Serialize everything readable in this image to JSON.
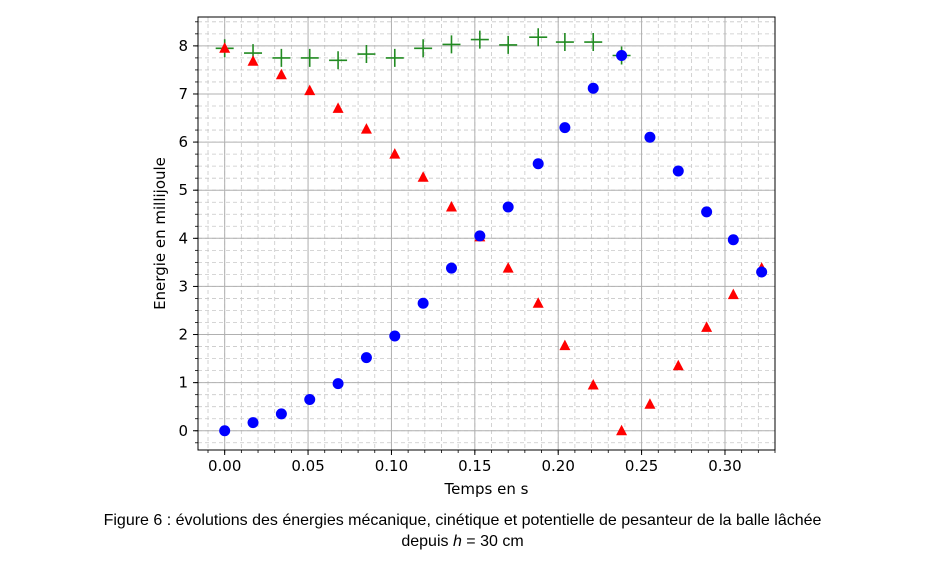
{
  "chart_data": {
    "type": "scatter",
    "title": "",
    "xlabel": "Temps en s",
    "ylabel": "Energie en millijoule",
    "xlim": [
      -0.016,
      0.33
    ],
    "ylim": [
      -0.4,
      8.6
    ],
    "x_ticks": [
      "0.00",
      "0.05",
      "0.10",
      "0.15",
      "0.20",
      "0.25",
      "0.30"
    ],
    "y_ticks": [
      "0",
      "1",
      "2",
      "3",
      "4",
      "5",
      "6",
      "7",
      "8"
    ],
    "grid": "major and minor, dashed",
    "series": [
      {
        "marker": "plus",
        "color": "#228b22",
        "points": [
          [
            0.0,
            7.95
          ],
          [
            0.017,
            7.85
          ],
          [
            0.034,
            7.75
          ],
          [
            0.051,
            7.75
          ],
          [
            0.068,
            7.7
          ],
          [
            0.085,
            7.83
          ],
          [
            0.102,
            7.75
          ],
          [
            0.119,
            7.95
          ],
          [
            0.136,
            8.03
          ],
          [
            0.153,
            8.13
          ],
          [
            0.17,
            8.02
          ],
          [
            0.188,
            8.18
          ],
          [
            0.204,
            8.08
          ],
          [
            0.221,
            8.08
          ],
          [
            0.238,
            7.8
          ]
        ]
      },
      {
        "marker": "triangle",
        "color": "#ff0000",
        "points": [
          [
            0.0,
            7.95
          ],
          [
            0.017,
            7.68
          ],
          [
            0.034,
            7.4
          ],
          [
            0.051,
            7.07
          ],
          [
            0.068,
            6.7
          ],
          [
            0.085,
            6.27
          ],
          [
            0.102,
            5.75
          ],
          [
            0.119,
            5.27
          ],
          [
            0.136,
            4.65
          ],
          [
            0.153,
            4.03
          ],
          [
            0.17,
            3.38
          ],
          [
            0.188,
            2.65
          ],
          [
            0.204,
            1.77
          ],
          [
            0.221,
            0.95
          ],
          [
            0.238,
            0.0
          ],
          [
            0.255,
            0.55
          ],
          [
            0.272,
            1.35
          ],
          [
            0.289,
            2.15
          ],
          [
            0.305,
            2.83
          ],
          [
            0.322,
            3.38
          ]
        ]
      },
      {
        "marker": "circle",
        "color": "#0000ff",
        "points": [
          [
            0.0,
            0.0
          ],
          [
            0.017,
            0.17
          ],
          [
            0.034,
            0.35
          ],
          [
            0.051,
            0.65
          ],
          [
            0.068,
            0.98
          ],
          [
            0.085,
            1.52
          ],
          [
            0.102,
            1.97
          ],
          [
            0.119,
            2.65
          ],
          [
            0.136,
            3.38
          ],
          [
            0.153,
            4.05
          ],
          [
            0.17,
            4.65
          ],
          [
            0.188,
            5.55
          ],
          [
            0.204,
            6.3
          ],
          [
            0.221,
            7.12
          ],
          [
            0.238,
            7.8
          ],
          [
            0.255,
            6.1
          ],
          [
            0.272,
            5.4
          ],
          [
            0.289,
            4.55
          ],
          [
            0.305,
            3.97
          ],
          [
            0.322,
            3.3
          ]
        ]
      }
    ]
  },
  "caption": {
    "line1": "Figure 6 : évolutions des énergies mécanique, cinétique et potentielle de pesanteur de la balle lâchée",
    "line2_prefix": "depuis ",
    "line2_var": "h",
    "line2_suffix": " = 30 cm"
  }
}
